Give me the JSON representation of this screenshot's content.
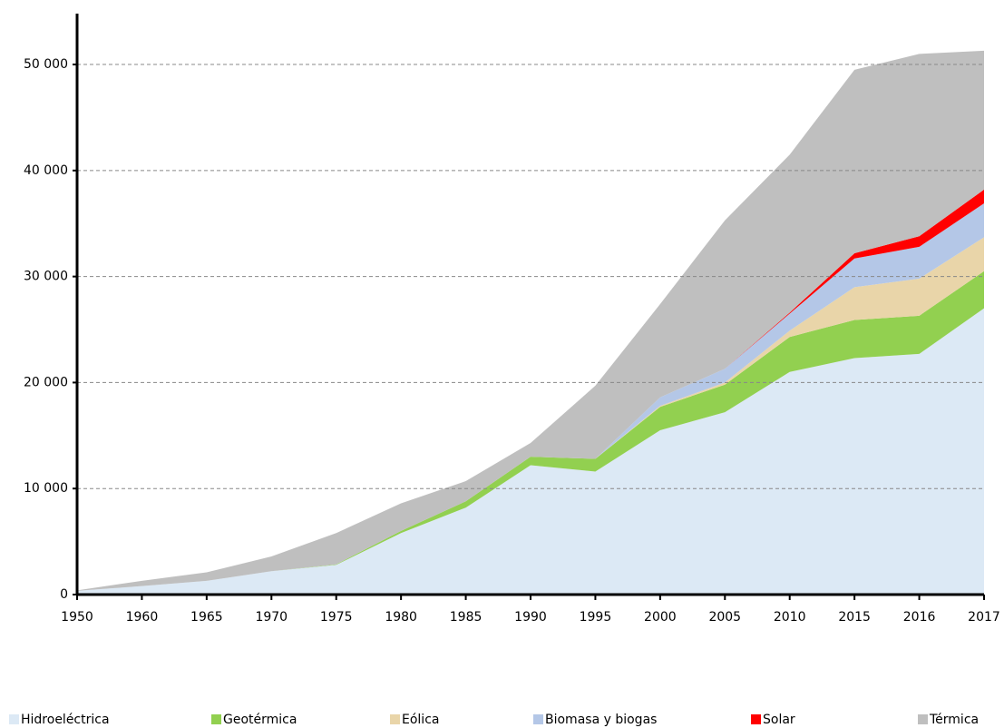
{
  "chart_data": {
    "type": "stacked_area",
    "categories": [
      "1950",
      "1960",
      "1965",
      "1970",
      "1975",
      "1980",
      "1985",
      "1990",
      "1995",
      "2000",
      "2005",
      "2010",
      "2015",
      "2016",
      "2017"
    ],
    "series": [
      {
        "name": "Hidroeléctrica",
        "color": "#dce9f5",
        "values": [
          350,
          800,
          1300,
          2200,
          2800,
          5800,
          8200,
          12200,
          11600,
          15500,
          17200,
          21000,
          22300,
          22700,
          27000
        ]
      },
      {
        "name": "Geotérmica",
        "color": "#92d050",
        "values": [
          0,
          0,
          0,
          0,
          50,
          200,
          600,
          800,
          1200,
          2200,
          2600,
          3300,
          3600,
          3600,
          3500
        ]
      },
      {
        "name": "Eólica",
        "color": "#e9d5a9",
        "values": [
          0,
          0,
          0,
          0,
          0,
          0,
          0,
          0,
          0,
          100,
          200,
          600,
          3100,
          3500,
          3200
        ]
      },
      {
        "name": "Biomasa y biogas",
        "color": "#b4c7e7",
        "values": [
          0,
          0,
          0,
          0,
          0,
          0,
          0,
          0,
          0,
          800,
          1300,
          1600,
          2700,
          3000,
          3200
        ]
      },
      {
        "name": "Solar",
        "color": "#ff0000",
        "values": [
          0,
          0,
          0,
          0,
          0,
          0,
          0,
          0,
          0,
          0,
          0,
          100,
          500,
          1000,
          1300
        ]
      },
      {
        "name": "Térmica",
        "color": "#bfbfbf",
        "values": [
          50,
          500,
          800,
          1400,
          2950,
          2600,
          1900,
          1300,
          6900,
          8800,
          14000,
          14900,
          17300,
          17200,
          13100
        ]
      }
    ],
    "ylim": [
      0,
      54800
    ],
    "yticks": [
      0,
      {
        "value": 10000,
        "label": "10 000"
      },
      {
        "value": 20000,
        "label": "20 000"
      },
      {
        "value": 30000,
        "label": "30 000"
      },
      {
        "value": 40000,
        "label": "40 000"
      },
      {
        "value": 50000,
        "label": "50 000"
      }
    ],
    "grid": true,
    "legend": "bottom"
  }
}
